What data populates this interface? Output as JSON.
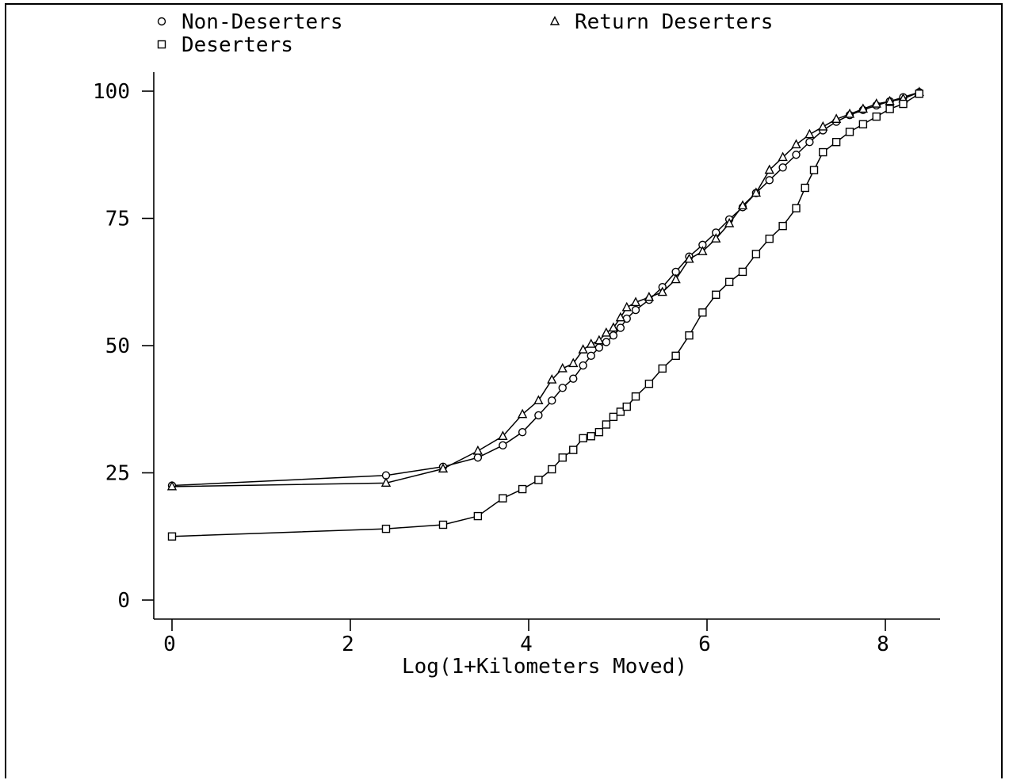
{
  "chart_data": {
    "type": "line",
    "title": "",
    "xlabel": "Log(1+Kilometers Moved)",
    "ylabel": "",
    "xlim": [
      0,
      8.6
    ],
    "ylim": [
      0,
      100
    ],
    "x_ticks": [
      0,
      2,
      4,
      6,
      8
    ],
    "y_ticks": [
      0,
      25,
      50,
      75,
      100
    ],
    "x_tick_labels": [
      "0",
      "2",
      "4",
      "6",
      "8"
    ],
    "y_tick_labels": [
      "0",
      "25",
      "50",
      "75",
      "100"
    ],
    "grid": false,
    "legend_position": "top",
    "series": [
      {
        "name": "Non-Deserters",
        "marker": "circle",
        "color": "#000000",
        "x": [
          0.0,
          2.4,
          3.04,
          3.43,
          3.71,
          3.93,
          4.11,
          4.26,
          4.38,
          4.5,
          4.61,
          4.7,
          4.79,
          4.87,
          4.95,
          5.03,
          5.1,
          5.2,
          5.35,
          5.5,
          5.65,
          5.8,
          5.95,
          6.1,
          6.25,
          6.4,
          6.55,
          6.7,
          6.85,
          7.0,
          7.15,
          7.3,
          7.45,
          7.6,
          7.75,
          7.9,
          8.05,
          8.2,
          8.38
        ],
        "y": [
          22.5,
          24.5,
          26.2,
          28.0,
          30.4,
          33.0,
          36.3,
          39.2,
          41.7,
          43.5,
          46.1,
          48.0,
          49.6,
          50.7,
          52.0,
          53.5,
          55.3,
          57.0,
          59.0,
          61.5,
          64.5,
          67.5,
          69.8,
          72.2,
          74.8,
          77.2,
          80.0,
          82.5,
          85.0,
          87.5,
          90.0,
          92.3,
          94.0,
          95.3,
          96.3,
          97.2,
          98.0,
          98.8,
          99.8
        ]
      },
      {
        "name": "Return Deserters",
        "marker": "triangle",
        "color": "#000000",
        "x": [
          0.0,
          2.4,
          3.04,
          3.43,
          3.71,
          3.93,
          4.11,
          4.26,
          4.38,
          4.5,
          4.61,
          4.7,
          4.79,
          4.87,
          4.95,
          5.03,
          5.1,
          5.2,
          5.35,
          5.5,
          5.65,
          5.8,
          5.95,
          6.1,
          6.25,
          6.4,
          6.55,
          6.7,
          6.85,
          7.0,
          7.15,
          7.3,
          7.45,
          7.6,
          7.75,
          7.9,
          8.05,
          8.2,
          8.38
        ],
        "y": [
          22.3,
          23.0,
          25.8,
          29.3,
          32.2,
          36.5,
          39.2,
          43.3,
          45.5,
          46.5,
          49.2,
          50.3,
          51.0,
          52.5,
          53.5,
          55.5,
          57.5,
          58.5,
          59.5,
          60.5,
          63.0,
          67.0,
          68.5,
          71.0,
          74.0,
          77.5,
          80.0,
          84.5,
          87.0,
          89.5,
          91.5,
          93.0,
          94.5,
          95.5,
          96.5,
          97.5,
          98.0,
          98.5,
          99.8
        ]
      },
      {
        "name": "Deserters",
        "marker": "square",
        "color": "#000000",
        "x": [
          0.0,
          2.4,
          3.04,
          3.43,
          3.71,
          3.93,
          4.11,
          4.26,
          4.38,
          4.5,
          4.61,
          4.7,
          4.79,
          4.87,
          4.95,
          5.03,
          5.1,
          5.2,
          5.35,
          5.5,
          5.65,
          5.8,
          5.95,
          6.1,
          6.25,
          6.4,
          6.55,
          6.7,
          6.85,
          7.0,
          7.1,
          7.2,
          7.3,
          7.45,
          7.6,
          7.75,
          7.9,
          8.05,
          8.2,
          8.38
        ],
        "y": [
          12.5,
          14.0,
          14.8,
          16.5,
          20.0,
          21.8,
          23.6,
          25.7,
          28.0,
          29.5,
          31.8,
          32.2,
          33.0,
          34.5,
          36.0,
          37.0,
          38.0,
          40.0,
          42.5,
          45.5,
          48.0,
          52.0,
          56.5,
          60.0,
          62.5,
          64.5,
          68.0,
          71.0,
          73.5,
          77.0,
          81.0,
          84.5,
          88.0,
          90.0,
          92.0,
          93.5,
          95.0,
          96.5,
          97.5,
          99.5
        ]
      }
    ]
  }
}
